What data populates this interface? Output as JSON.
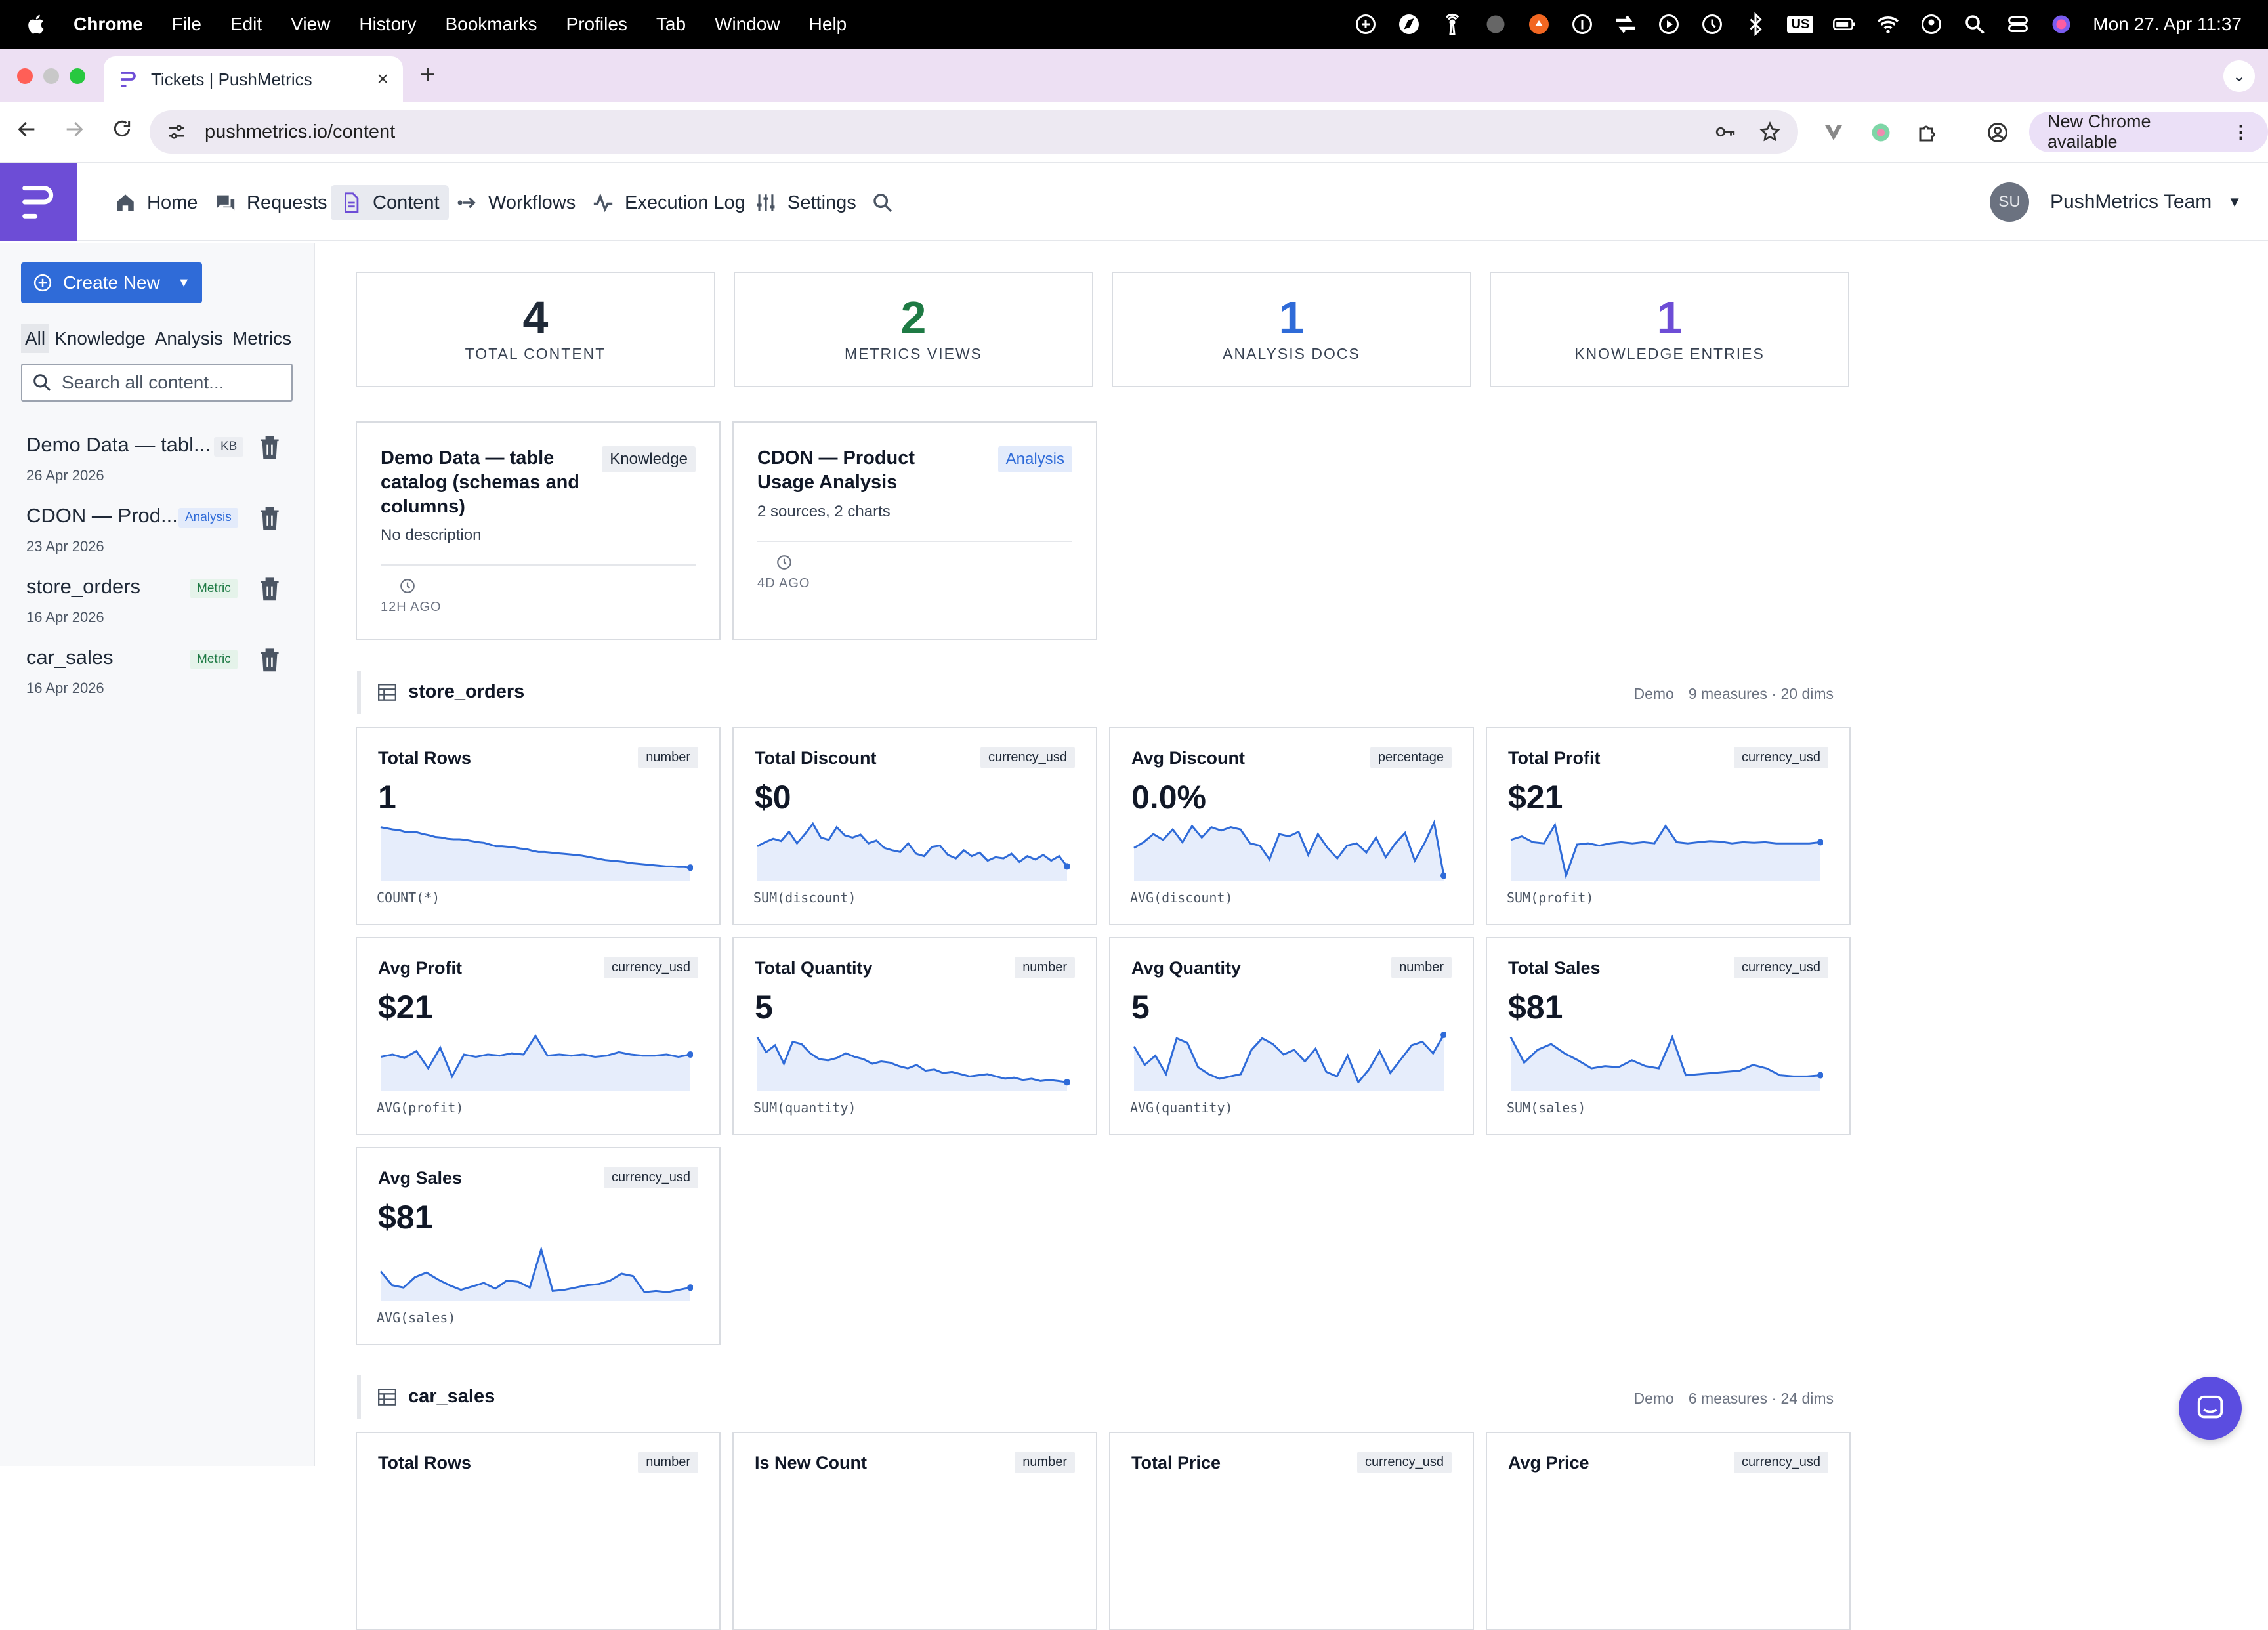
{
  "mac_menubar": {
    "app_name": "Chrome",
    "menus": [
      "File",
      "Edit",
      "View",
      "History",
      "Bookmarks",
      "Profiles",
      "Tab",
      "Window",
      "Help"
    ],
    "keyboard_layout": "US",
    "datetime": "Mon 27. Apr  11:37"
  },
  "browser": {
    "tab_title": "Tickets | PushMetrics",
    "url": "pushmetrics.io/content",
    "update_button": "New Chrome available"
  },
  "app": {
    "nav": {
      "home": "Home",
      "requests": "Requests",
      "content": "Content",
      "workflows": "Workflows",
      "execution_log": "Execution Log",
      "settings": "Settings"
    },
    "user": {
      "initials": "SU",
      "team": "PushMetrics Team"
    },
    "accent": "#6d4dd6"
  },
  "sidebar": {
    "create_button": "Create New",
    "filters": [
      "All",
      "Knowledge",
      "Analysis",
      "Metrics"
    ],
    "active_filter": "All",
    "search_placeholder": "Search all content...",
    "items": [
      {
        "name": "Demo Data — tabl...",
        "date": "26 Apr 2026",
        "badge": "KB"
      },
      {
        "name": "CDON — Prod...",
        "date": "23 Apr 2026",
        "badge": "Analysis"
      },
      {
        "name": "store_orders",
        "date": "16 Apr 2026",
        "badge": "Metric"
      },
      {
        "name": "car_sales",
        "date": "16 Apr 2026",
        "badge": "Metric"
      }
    ]
  },
  "stats": [
    {
      "value": "4",
      "label": "TOTAL CONTENT",
      "color": "#1f2937"
    },
    {
      "value": "2",
      "label": "METRICS VIEWS",
      "color": "#1e7a44"
    },
    {
      "value": "1",
      "label": "ANALYSIS DOCS",
      "color": "#2f6bd8"
    },
    {
      "value": "1",
      "label": "KNOWLEDGE ENTRIES",
      "color": "#6d4dd6"
    }
  ],
  "documents": [
    {
      "title": "Demo Data — table catalog (schemas and columns)",
      "type": "Knowledge",
      "description": "No description",
      "ago": "12H AGO"
    },
    {
      "title": "CDON — Product Usage Analysis",
      "type": "Analysis",
      "description": "2 sources, 2 charts",
      "ago": "4D AGO"
    }
  ],
  "sections": [
    {
      "name": "store_orders",
      "source": "Demo",
      "summary": "9 measures · 20 dims",
      "metrics": [
        {
          "name": "Total Rows",
          "type": "number",
          "value": "1",
          "expr": "COUNT(*)",
          "trend": [
            88,
            86,
            84,
            83,
            80,
            80,
            79,
            76,
            74,
            71,
            70,
            68,
            67,
            67,
            66,
            64,
            62,
            61,
            58,
            55,
            55,
            54,
            53,
            51,
            50,
            47,
            45,
            45,
            44,
            43,
            42,
            41,
            40,
            39,
            37,
            35,
            33,
            31,
            30,
            29,
            28,
            26,
            25,
            24,
            23,
            22,
            21,
            20,
            20,
            19,
            19,
            18
          ]
        },
        {
          "name": "Total Discount",
          "type": "currency_usd",
          "value": "$0",
          "expr": "SUM(discount)",
          "trend": [
            55,
            62,
            68,
            64,
            80,
            60,
            76,
            94,
            70,
            66,
            88,
            74,
            70,
            75,
            60,
            65,
            52,
            48,
            45,
            60,
            42,
            38,
            54,
            56,
            40,
            34,
            48,
            38,
            44,
            30,
            36,
            34,
            42,
            28,
            38,
            32,
            40,
            30,
            38,
            20
          ]
        },
        {
          "name": "Avg Discount",
          "type": "percentage",
          "value": "0.0%",
          "expr": "AVG(discount)",
          "trend": [
            52,
            62,
            76,
            66,
            84,
            62,
            90,
            70,
            88,
            82,
            88,
            84,
            60,
            56,
            32,
            76,
            72,
            80,
            40,
            76,
            52,
            34,
            56,
            60,
            44,
            70,
            36,
            60,
            78,
            30,
            60,
            96,
            4
          ]
        },
        {
          "name": "Total Profit",
          "type": "currency_usd",
          "value": "$21",
          "expr": "SUM(profit)",
          "trend": [
            66,
            72,
            62,
            60,
            92,
            4,
            58,
            60,
            56,
            60,
            62,
            60,
            62,
            60,
            90,
            62,
            60,
            62,
            64,
            63,
            60,
            62,
            61,
            62,
            60,
            60,
            60,
            60,
            62
          ]
        },
        {
          "name": "Avg Profit",
          "type": "currency_usd",
          "value": "$21",
          "expr": "AVG(profit)",
          "trend": [
            54,
            58,
            52,
            64,
            34,
            70,
            20,
            58,
            54,
            58,
            56,
            60,
            58,
            90,
            56,
            58,
            56,
            58,
            54,
            56,
            62,
            58,
            56,
            56,
            58,
            54,
            58
          ]
        },
        {
          "name": "Total Quantity",
          "type": "number",
          "value": "5",
          "expr": "SUM(quantity)",
          "trend": [
            88,
            62,
            74,
            42,
            80,
            76,
            60,
            50,
            48,
            52,
            60,
            54,
            50,
            42,
            46,
            44,
            38,
            34,
            40,
            30,
            32,
            26,
            28,
            24,
            20,
            22,
            24,
            20,
            16,
            18,
            14,
            16,
            12,
            14,
            12,
            10
          ]
        },
        {
          "name": "Avg Quantity",
          "type": "number",
          "value": "5",
          "expr": "AVG(quantity)",
          "trend": [
            72,
            40,
            56,
            24,
            86,
            78,
            36,
            24,
            16,
            20,
            24,
            66,
            86,
            76,
            58,
            66,
            46,
            68,
            28,
            20,
            56,
            10,
            32,
            64,
            26,
            50,
            74,
            80,
            60,
            92
          ]
        },
        {
          "name": "Total Sales",
          "type": "currency_usd",
          "value": "$81",
          "expr": "SUM(sales)",
          "trend": [
            88,
            44,
            66,
            76,
            60,
            48,
            34,
            38,
            36,
            48,
            38,
            34,
            88,
            22,
            24,
            26,
            28,
            30,
            40,
            34,
            22,
            20,
            20,
            22
          ]
        },
        {
          "name": "Avg Sales",
          "type": "currency_usd",
          "value": "$81",
          "expr": "AVG(sales)",
          "trend": [
            46,
            22,
            18,
            36,
            44,
            32,
            22,
            14,
            20,
            26,
            16,
            30,
            28,
            18,
            84,
            12,
            14,
            18,
            22,
            24,
            30,
            42,
            38,
            10,
            12,
            10,
            14,
            18
          ]
        }
      ]
    },
    {
      "name": "car_sales",
      "source": "Demo",
      "summary": "6 measures · 24 dims",
      "metrics": [
        {
          "name": "Total Rows",
          "type": "number"
        },
        {
          "name": "Is New Count",
          "type": "number"
        },
        {
          "name": "Total Price",
          "type": "currency_usd"
        },
        {
          "name": "Avg Price",
          "type": "currency_usd"
        }
      ]
    }
  ]
}
